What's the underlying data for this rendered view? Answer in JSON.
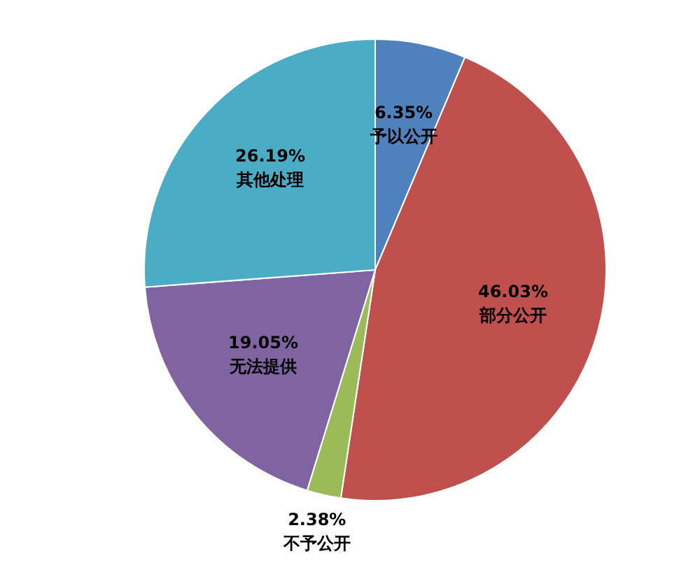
{
  "chart_data": {
    "type": "pie",
    "categories": [
      "予以公开",
      "部分公开",
      "不予公开",
      "无法提供",
      "其他处理"
    ],
    "values": [
      6.35,
      46.03,
      2.38,
      19.05,
      26.19
    ],
    "value_labels": [
      "6.35%",
      "46.03%",
      "2.38%",
      "19.05%",
      "26.19%"
    ],
    "colors": [
      "#4f81bd",
      "#c0504d",
      "#9bbb59",
      "#8064a2",
      "#4bacc6"
    ],
    "legend": false
  }
}
